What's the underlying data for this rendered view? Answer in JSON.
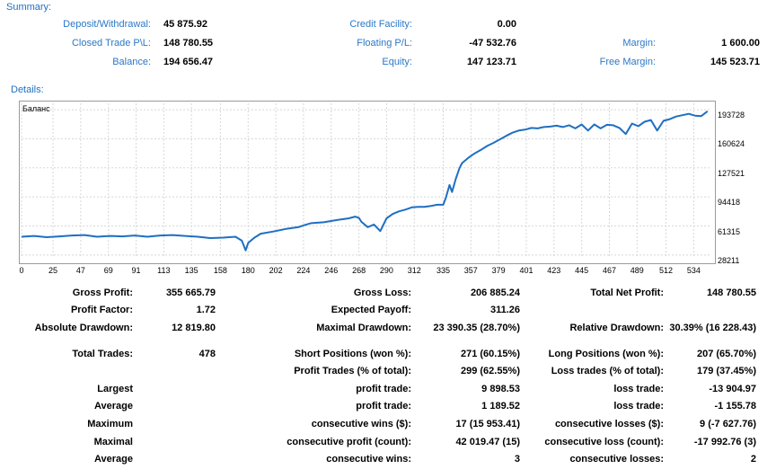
{
  "summary": {
    "title": "Summary:",
    "deposit_label": "Deposit/Withdrawal:",
    "deposit_value": "45 875.92",
    "closed_label": "Closed Trade P\\L:",
    "closed_value": "148 780.55",
    "balance_label": "Balance:",
    "balance_value": "194 656.47",
    "credit_label": "Credit Facility:",
    "credit_value": "0.00",
    "floating_label": "Floating P/L:",
    "floating_value": "-47 532.76",
    "equity_label": "Equity:",
    "equity_value": "147 123.71",
    "margin_label": "Margin:",
    "margin_value": "1 600.00",
    "free_margin_label": "Free Margin:",
    "free_margin_value": "145 523.71"
  },
  "details": {
    "title": "Details:",
    "chart_legend": "Баланс"
  },
  "chart_data": {
    "type": "line",
    "title": "Баланс",
    "xlabel": "",
    "ylabel": "",
    "x_ticks": [
      0,
      25,
      47,
      69,
      91,
      113,
      135,
      158,
      180,
      202,
      224,
      246,
      268,
      290,
      312,
      335,
      357,
      379,
      401,
      423,
      445,
      467,
      489,
      512,
      534
    ],
    "y_ticks": [
      28211,
      61315,
      94418,
      127521,
      160624,
      193728
    ],
    "xlim": [
      0,
      548
    ],
    "ylim": [
      25000,
      201000
    ],
    "grid": true,
    "series": [
      {
        "name": "Баланс",
        "color": "#1f6fc2",
        "x": [
          0,
          10,
          20,
          30,
          40,
          50,
          60,
          70,
          80,
          90,
          100,
          110,
          120,
          130,
          140,
          150,
          160,
          170,
          175,
          178,
          180,
          185,
          190,
          200,
          210,
          220,
          225,
          230,
          240,
          250,
          260,
          265,
          268,
          270,
          275,
          280,
          285,
          290,
          295,
          300,
          305,
          310,
          315,
          320,
          325,
          330,
          335,
          337,
          340,
          342,
          345,
          348,
          350,
          355,
          360,
          365,
          370,
          375,
          380,
          385,
          390,
          395,
          400,
          405,
          410,
          415,
          420,
          425,
          430,
          435,
          440,
          445,
          450,
          455,
          460,
          465,
          470,
          475,
          480,
          485,
          490,
          495,
          500,
          505,
          510,
          515,
          520,
          525,
          530,
          535,
          540,
          545
        ],
        "y": [
          49000,
          50000,
          48500,
          49500,
          50500,
          51000,
          49000,
          50000,
          49500,
          50500,
          49000,
          50500,
          51000,
          50000,
          49000,
          47500,
          48000,
          49000,
          44500,
          33500,
          42000,
          48000,
          52500,
          55000,
          58000,
          60000,
          62500,
          64500,
          65500,
          68000,
          70000,
          72000,
          70500,
          66000,
          60000,
          63000,
          55500,
          70000,
          75000,
          78000,
          80000,
          82500,
          83000,
          83000,
          84000,
          85500,
          85500,
          93000,
          108000,
          100000,
          115000,
          127500,
          133000,
          139000,
          144000,
          148000,
          152500,
          156000,
          160000,
          164000,
          167500,
          170000,
          171000,
          173000,
          172500,
          174000,
          174500,
          175500,
          174000,
          176000,
          172500,
          177000,
          170000,
          177000,
          172500,
          176500,
          176000,
          173000,
          166000,
          178000,
          175000,
          180000,
          182000,
          170000,
          181000,
          183000,
          186000,
          187500,
          189000,
          187000,
          186500,
          192000
        ]
      }
    ]
  },
  "stats": {
    "gross_profit_label": "Gross Profit:",
    "gross_profit": "355 665.79",
    "gross_loss_label": "Gross Loss:",
    "gross_loss": "206 885.24",
    "net_profit_label": "Total Net Profit:",
    "net_profit": "148 780.55",
    "profit_factor_label": "Profit Factor:",
    "profit_factor": "1.72",
    "expected_payoff_label": "Expected Payoff:",
    "expected_payoff": "311.26",
    "abs_dd_label": "Absolute Drawdown:",
    "abs_dd": "12 819.80",
    "max_dd_label": "Maximal Drawdown:",
    "max_dd": "23 390.35 (28.70%)",
    "rel_dd_label": "Relative Drawdown:",
    "rel_dd": "30.39% (16 228.43)",
    "total_trades_label": "Total Trades:",
    "total_trades": "478",
    "short_pos_label": "Short Positions (won %):",
    "short_pos": "271 (60.15%)",
    "long_pos_label": "Long Positions (won %):",
    "long_pos": "207 (65.70%)",
    "profit_trades_label": "Profit Trades (% of total):",
    "profit_trades": "299 (62.55%)",
    "loss_trades_label": "Loss trades (% of total):",
    "loss_trades": "179 (37.45%)",
    "largest_label": "Largest",
    "largest_profit_label": "profit trade:",
    "largest_profit": "9 898.53",
    "largest_loss_label": "loss trade:",
    "largest_loss": "-13 904.97",
    "average_label": "Average",
    "avg_profit_label": "profit trade:",
    "avg_profit": "1 189.52",
    "avg_loss_label": "loss trade:",
    "avg_loss": "-1 155.78",
    "maximum_label": "Maximum",
    "max_cons_wins_label": "consecutive wins ($):",
    "max_cons_wins": "17 (15 953.41)",
    "max_cons_losses_label": "consecutive losses ($):",
    "max_cons_losses": "9 (-7 627.76)",
    "maximal_label": "Maximal",
    "maximal_cons_profit_label": "consecutive profit (count):",
    "maximal_cons_profit": "42 019.47 (15)",
    "maximal_cons_loss_label": "consecutive loss (count):",
    "maximal_cons_loss": "-17 992.76 (3)",
    "average2_label": "Average",
    "avg_cons_wins_label": "consecutive wins:",
    "avg_cons_wins": "3",
    "avg_cons_losses_label": "consecutive losses:",
    "avg_cons_losses": "2"
  }
}
